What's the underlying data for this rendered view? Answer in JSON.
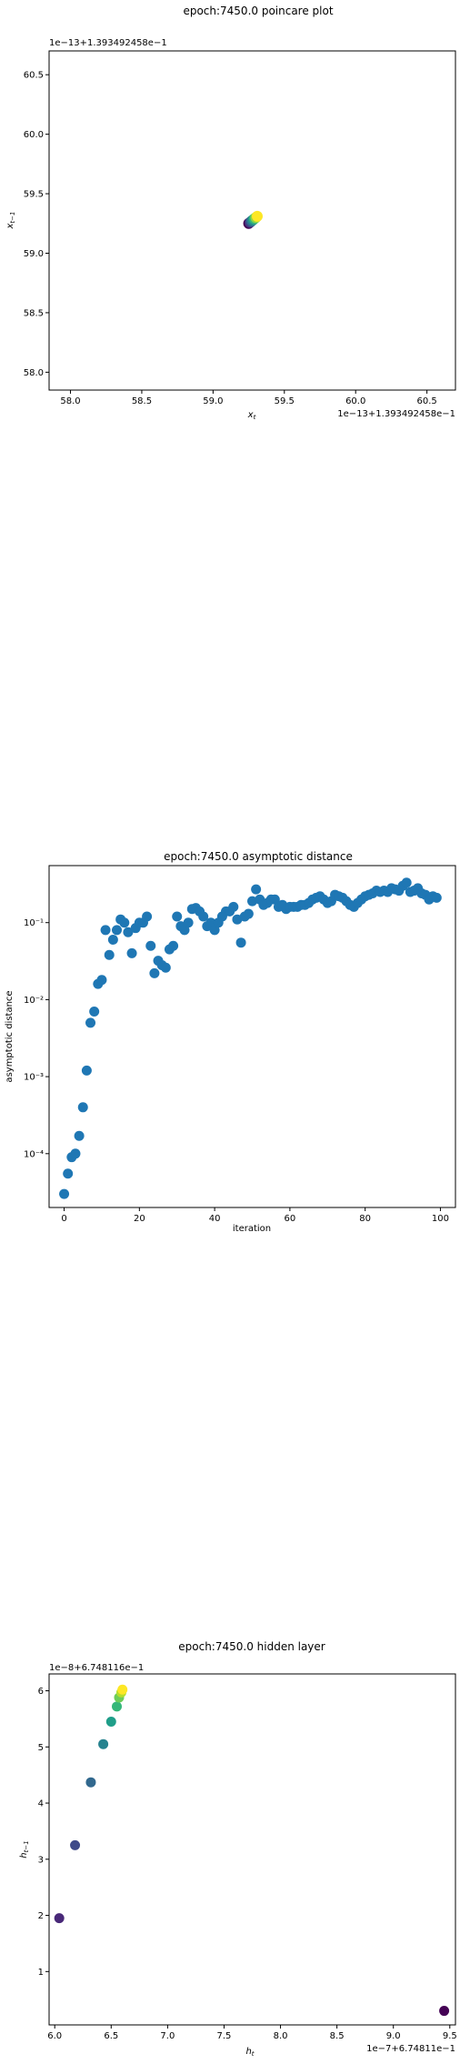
{
  "chart_data": [
    {
      "type": "scatter",
      "title": "epoch:7450.0 poincare plot",
      "xlabel": "x_t",
      "ylabel": "x_t-1",
      "x_offset_text": "1e−13+1.393492458e−1",
      "y_offset_text": "1e−13+1.393492458e−1",
      "xlim": [
        57.85,
        60.7
      ],
      "ylim": [
        57.85,
        60.7
      ],
      "xticks": [
        "58.0",
        "58.5",
        "59.0",
        "59.5",
        "60.0",
        "60.5"
      ],
      "yticks": [
        "58.0",
        "58.5",
        "59.0",
        "59.5",
        "60.0",
        "60.5"
      ],
      "colormap": "viridis",
      "points": [
        {
          "x": 59.25,
          "y": 59.25
        },
        {
          "x": 59.26,
          "y": 59.26
        },
        {
          "x": 59.27,
          "y": 59.27
        },
        {
          "x": 59.28,
          "y": 59.28
        },
        {
          "x": 59.29,
          "y": 59.29
        },
        {
          "x": 59.3,
          "y": 59.3
        },
        {
          "x": 59.31,
          "y": 59.31
        }
      ]
    },
    {
      "type": "scatter",
      "title": "epoch:7450.0 asymptotic distance",
      "xlabel": "iteration",
      "ylabel": "asymptotic distance",
      "yscale": "log",
      "xlim": [
        -4,
        104
      ],
      "ylim": [
        2e-05,
        0.55
      ],
      "xticks": [
        "0",
        "20",
        "40",
        "60",
        "80",
        "100"
      ],
      "yticks": [
        "10⁻⁴",
        "10⁻³",
        "10⁻²",
        "10⁻¹"
      ],
      "color": "#1f77b4",
      "x": [
        0,
        1,
        2,
        3,
        4,
        5,
        6,
        7,
        8,
        9,
        10,
        11,
        12,
        13,
        14,
        15,
        16,
        17,
        18,
        19,
        20,
        21,
        22,
        23,
        24,
        25,
        26,
        27,
        28,
        29,
        30,
        31,
        32,
        33,
        34,
        35,
        36,
        37,
        38,
        39,
        40,
        41,
        42,
        43,
        44,
        45,
        46,
        47,
        48,
        49,
        50,
        51,
        52,
        53,
        54,
        55,
        56,
        57,
        58,
        59,
        60,
        61,
        62,
        63,
        64,
        65,
        66,
        67,
        68,
        69,
        70,
        71,
        72,
        73,
        74,
        75,
        76,
        77,
        78,
        79,
        80,
        81,
        82,
        83,
        84,
        85,
        86,
        87,
        88,
        89,
        90,
        91,
        92,
        93,
        94,
        95,
        96,
        97,
        98,
        99
      ],
      "y": [
        3e-05,
        5.5e-05,
        9e-05,
        0.0001,
        0.00017,
        0.0004,
        0.0012,
        0.005,
        0.007,
        0.016,
        0.018,
        0.08,
        0.038,
        0.06,
        0.08,
        0.11,
        0.1,
        0.075,
        0.04,
        0.085,
        0.1,
        0.1,
        0.12,
        0.05,
        0.022,
        0.032,
        0.028,
        0.026,
        0.045,
        0.05,
        0.12,
        0.09,
        0.08,
        0.1,
        0.15,
        0.155,
        0.14,
        0.12,
        0.09,
        0.1,
        0.08,
        0.1,
        0.12,
        0.14,
        0.14,
        0.16,
        0.11,
        0.055,
        0.12,
        0.13,
        0.19,
        0.27,
        0.2,
        0.17,
        0.18,
        0.2,
        0.2,
        0.16,
        0.17,
        0.15,
        0.16,
        0.16,
        0.16,
        0.17,
        0.17,
        0.18,
        0.2,
        0.21,
        0.22,
        0.2,
        0.18,
        0.19,
        0.23,
        0.22,
        0.21,
        0.19,
        0.17,
        0.16,
        0.18,
        0.2,
        0.22,
        0.23,
        0.24,
        0.26,
        0.25,
        0.26,
        0.25,
        0.28,
        0.27,
        0.26,
        0.3,
        0.33,
        0.25,
        0.26,
        0.28,
        0.24,
        0.23,
        0.2,
        0.22,
        0.21
      ]
    },
    {
      "type": "scatter",
      "title": "epoch:7450.0 hidden layer",
      "xlabel": "h_t",
      "ylabel": "h_t-1",
      "x_offset_text": "1e−7+6.74811e−1",
      "y_offset_text": "1e−8+6.748116e−1",
      "xlim": [
        5.95,
        9.55
      ],
      "ylim": [
        0.05,
        6.3
      ],
      "xticks": [
        "6.0",
        "6.5",
        "7.0",
        "7.5",
        "8.0",
        "8.5",
        "9.0",
        "9.5"
      ],
      "yticks": [
        "1",
        "2",
        "3",
        "4",
        "5",
        "6"
      ],
      "colormap": "viridis",
      "points": [
        {
          "x": 9.45,
          "y": 0.3
        },
        {
          "x": 6.04,
          "y": 1.95
        },
        {
          "x": 6.18,
          "y": 3.25
        },
        {
          "x": 6.32,
          "y": 4.37
        },
        {
          "x": 6.43,
          "y": 5.05
        },
        {
          "x": 6.5,
          "y": 5.45
        },
        {
          "x": 6.55,
          "y": 5.72
        },
        {
          "x": 6.57,
          "y": 5.88
        },
        {
          "x": 6.59,
          "y": 5.97
        },
        {
          "x": 6.6,
          "y": 6.02
        }
      ]
    }
  ]
}
